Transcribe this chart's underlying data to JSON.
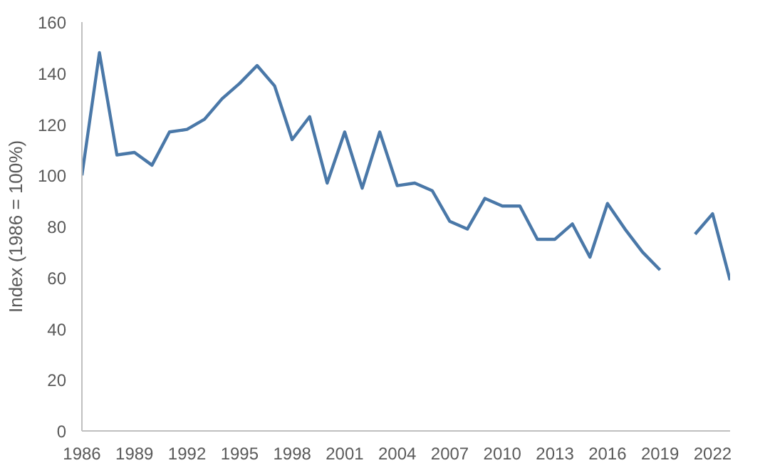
{
  "chart_data": {
    "type": "line",
    "ylabel": "Index (1986 = 100%)",
    "x": [
      1986,
      1987,
      1988,
      1989,
      1990,
      1991,
      1992,
      1993,
      1994,
      1995,
      1996,
      1997,
      1998,
      1999,
      2000,
      2001,
      2002,
      2003,
      2004,
      2005,
      2006,
      2007,
      2008,
      2009,
      2010,
      2011,
      2012,
      2013,
      2014,
      2015,
      2016,
      2017,
      2018,
      2019,
      2020,
      2021,
      2022,
      2023
    ],
    "series": [
      {
        "color": "#4a78a8",
        "values": [
          100,
          148,
          108,
          109,
          104,
          117,
          118,
          122,
          130,
          136,
          143,
          135,
          114,
          123,
          97,
          117,
          95,
          117,
          96,
          97,
          94,
          82,
          79,
          91,
          88,
          88,
          75,
          75,
          81,
          68,
          89,
          79,
          70,
          63,
          null,
          77,
          85,
          59
        ]
      }
    ],
    "xlim": [
      1986,
      2023
    ],
    "xticks": [
      1986,
      1989,
      1992,
      1995,
      1998,
      2001,
      2004,
      2007,
      2010,
      2013,
      2016,
      2019,
      2022
    ],
    "ylim": [
      0,
      160
    ],
    "yticks": [
      0,
      20,
      40,
      60,
      80,
      100,
      120,
      140,
      160
    ],
    "grid": false,
    "marker": "none",
    "line_style": "solid"
  }
}
